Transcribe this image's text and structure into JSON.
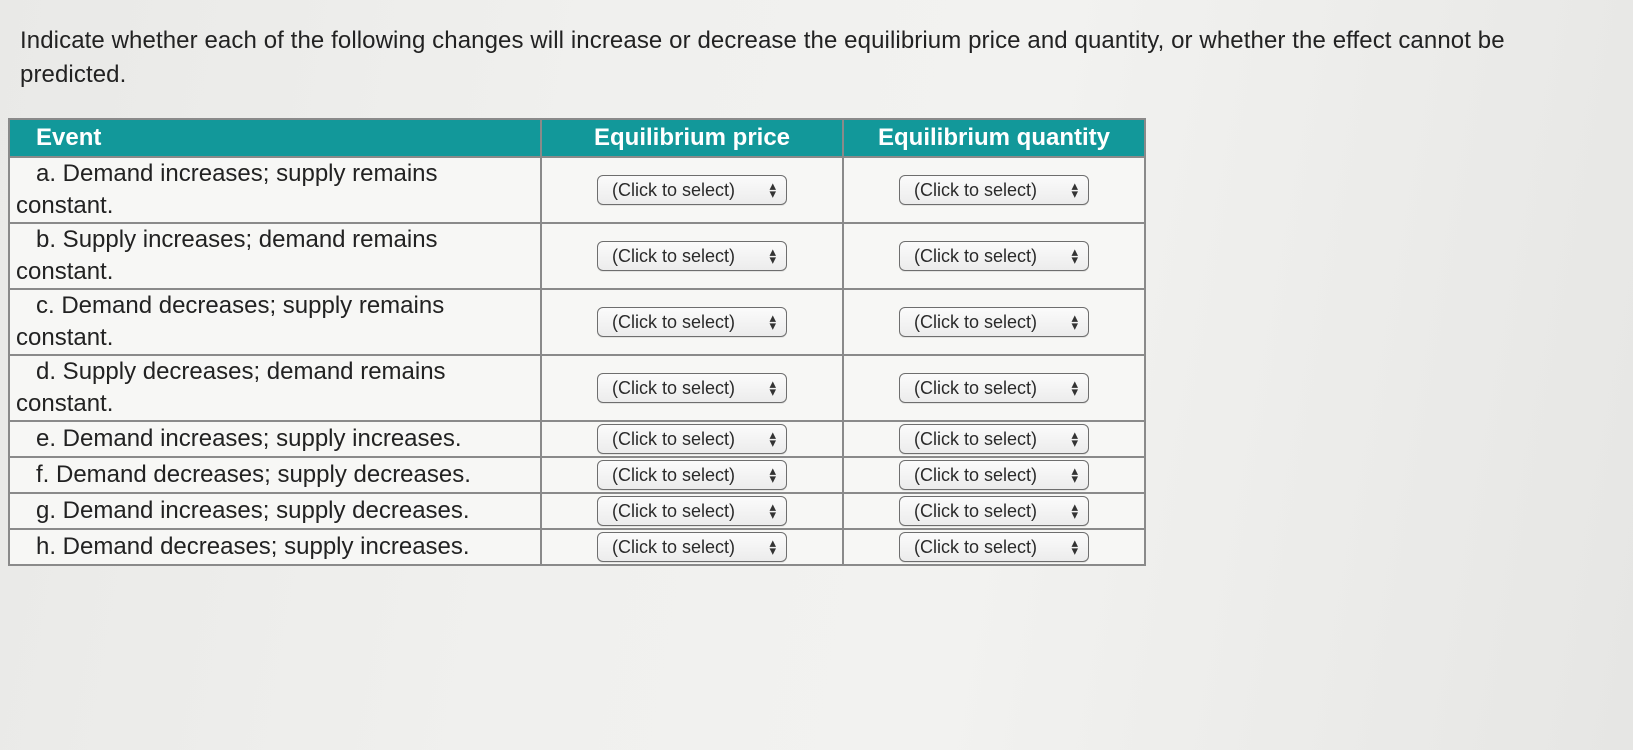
{
  "instructions": "Indicate whether each of the following changes will increase or decrease the equilibrium price and quantity, or whether the effect cannot be predicted.",
  "table": {
    "headers": {
      "event": "Event",
      "price": "Equilibrium price",
      "quantity": "Equilibrium quantity"
    },
    "rows": [
      {
        "event": "a. Demand increases; supply remains constant.",
        "price": "(Click to select)",
        "quantity": "(Click to select)"
      },
      {
        "event": "b. Supply increases; demand remains constant.",
        "price": "(Click to select)",
        "quantity": "(Click to select)"
      },
      {
        "event": "c. Demand decreases; supply remains constant.",
        "price": "(Click to select)",
        "quantity": "(Click to select)"
      },
      {
        "event": "d. Supply decreases; demand remains constant.",
        "price": "(Click to select)",
        "quantity": "(Click to select)"
      },
      {
        "event": "e. Demand increases; supply increases.",
        "price": "(Click to select)",
        "quantity": "(Click to select)"
      },
      {
        "event": "f. Demand decreases; supply decreases.",
        "price": "(Click to select)",
        "quantity": "(Click to select)"
      },
      {
        "event": "g. Demand increases; supply decreases.",
        "price": "(Click to select)",
        "quantity": "(Click to select)"
      },
      {
        "event": "h. Demand decreases; supply increases.",
        "price": "(Click to select)",
        "quantity": "(Click to select)"
      }
    ]
  },
  "icons": {
    "select_arrows": "up-down-arrows-icon"
  },
  "colors": {
    "header_background": "#12989a",
    "header_text": "#ffffff",
    "border": "#8a8a8a"
  }
}
